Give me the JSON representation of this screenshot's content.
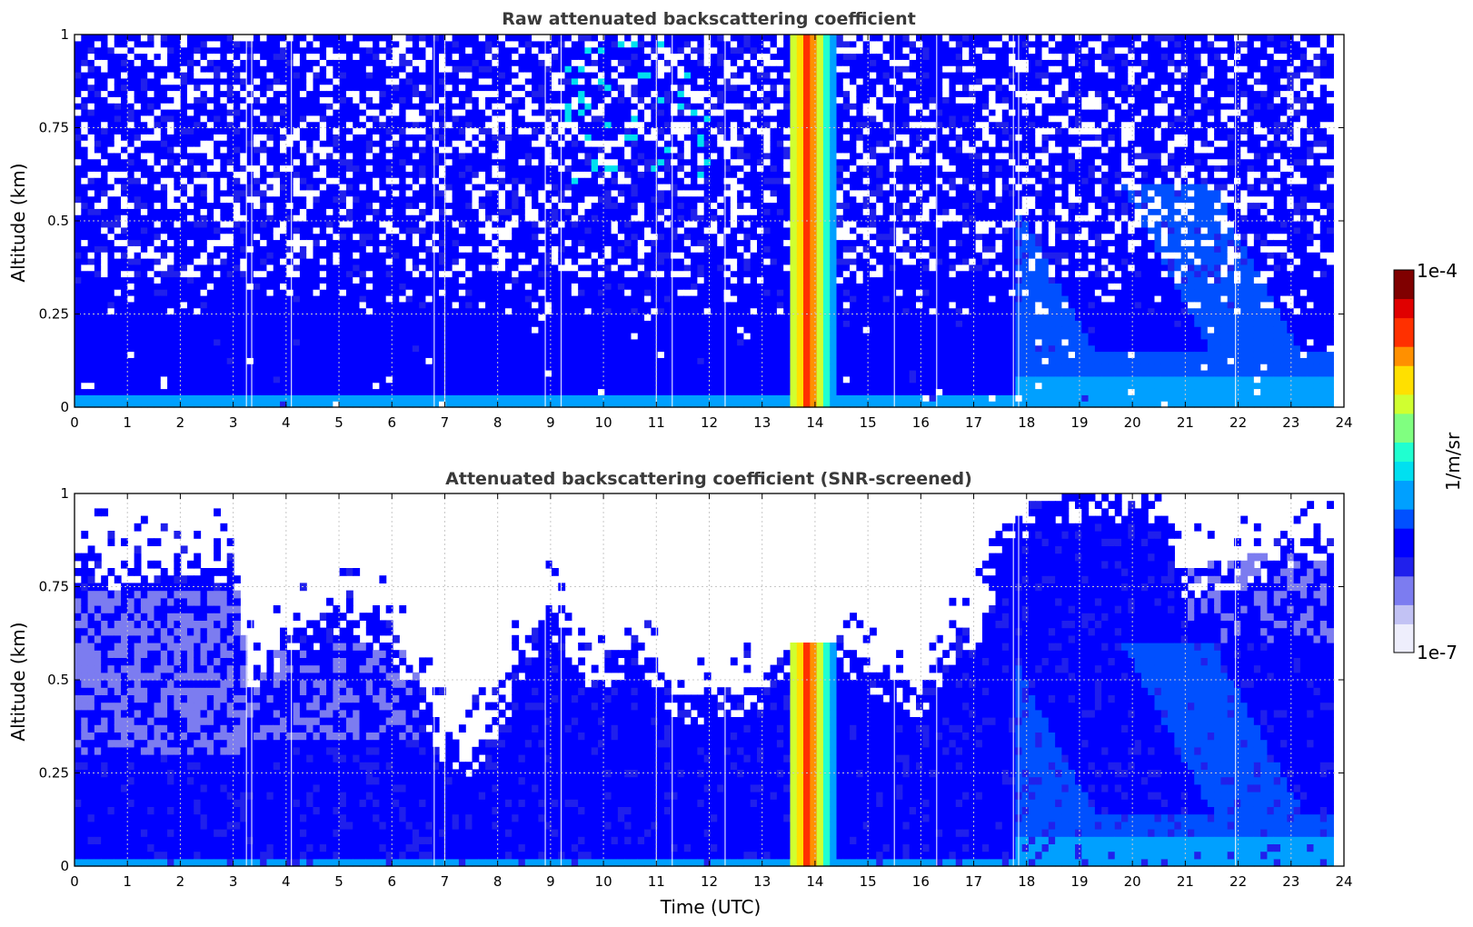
{
  "colors": {
    "jet_scale": [
      "#eeeefc",
      "#c2c2f4",
      "#7c7cf0",
      "#2020ec",
      "#0000ff",
      "#0050ff",
      "#00a0ff",
      "#00e0f0",
      "#20ffd0",
      "#80ff80",
      "#d0ff30",
      "#ffe000",
      "#ff9000",
      "#ff3000",
      "#e00000",
      "#800000"
    ],
    "grid": "#c8c8c8",
    "title": "#3a3a3a"
  },
  "chart_data": [
    {
      "type": "heatmap",
      "title": "Raw attenuated backscattering coefficient",
      "xlabel": "",
      "ylabel": "Altitude (km)",
      "xlim": [
        0,
        24
      ],
      "ylim": [
        0,
        1
      ],
      "x_ticks": [
        "0",
        "1",
        "2",
        "3",
        "4",
        "5",
        "6",
        "7",
        "8",
        "9",
        "10",
        "11",
        "12",
        "13",
        "14",
        "15",
        "16",
        "17",
        "18",
        "19",
        "20",
        "21",
        "22",
        "23",
        "24"
      ],
      "y_ticks": [
        "0",
        "0.25",
        "0.5",
        "0.75",
        "1"
      ],
      "data_extent_hours": [
        0,
        23.8
      ],
      "grid": true,
      "description_bands": [
        {
          "hours": [
            13.5,
            14.3
          ],
          "level": "high"
        }
      ]
    },
    {
      "type": "heatmap",
      "title": "Attenuated backscattering coefficient (SNR-screened)",
      "xlabel": "Time (UTC)",
      "ylabel": "Altitude (km)",
      "xlim": [
        0,
        24
      ],
      "ylim": [
        0,
        1
      ],
      "x_ticks": [
        "0",
        "1",
        "2",
        "3",
        "4",
        "5",
        "6",
        "7",
        "8",
        "9",
        "10",
        "11",
        "12",
        "13",
        "14",
        "15",
        "16",
        "17",
        "18",
        "19",
        "20",
        "21",
        "22",
        "23",
        "24"
      ],
      "y_ticks": [
        "0",
        "0.25",
        "0.5",
        "0.75",
        "1"
      ],
      "data_extent_hours": [
        0,
        23.8
      ],
      "grid": true,
      "screen_top_km": [
        [
          0,
          0.85
        ],
        [
          1,
          0.82
        ],
        [
          2,
          0.85
        ],
        [
          3,
          0.83
        ],
        [
          3.3,
          0.55
        ],
        [
          4,
          0.62
        ],
        [
          5,
          0.7
        ],
        [
          6,
          0.65
        ],
        [
          6.5,
          0.5
        ],
        [
          7,
          0.35
        ],
        [
          7.5,
          0.32
        ],
        [
          8,
          0.4
        ],
        [
          8.5,
          0.6
        ],
        [
          9,
          0.7
        ],
        [
          9.5,
          0.55
        ],
        [
          10,
          0.55
        ],
        [
          10.5,
          0.6
        ],
        [
          11,
          0.55
        ],
        [
          11.5,
          0.45
        ],
        [
          12,
          0.45
        ],
        [
          12.5,
          0.48
        ],
        [
          13,
          0.5
        ],
        [
          13.5,
          0.6
        ],
        [
          14.3,
          0.6
        ],
        [
          14.5,
          0.6
        ],
        [
          15,
          0.55
        ],
        [
          15.5,
          0.5
        ],
        [
          16,
          0.48
        ],
        [
          16.5,
          0.6
        ],
        [
          17,
          0.65
        ],
        [
          17.3,
          0.72
        ],
        [
          17.5,
          0.95
        ],
        [
          18,
          0.97
        ],
        [
          19,
          1.0
        ],
        [
          20,
          1.0
        ],
        [
          20.6,
          1.0
        ],
        [
          21,
          0.8
        ],
        [
          22,
          0.82
        ],
        [
          23,
          0.88
        ],
        [
          23.8,
          0.9
        ]
      ]
    }
  ],
  "colorbar": {
    "label": "1/m/sr",
    "max_label": "1e-4",
    "min_label": "1e-7",
    "range": [
      1e-07,
      0.0001
    ],
    "scale": "log"
  }
}
